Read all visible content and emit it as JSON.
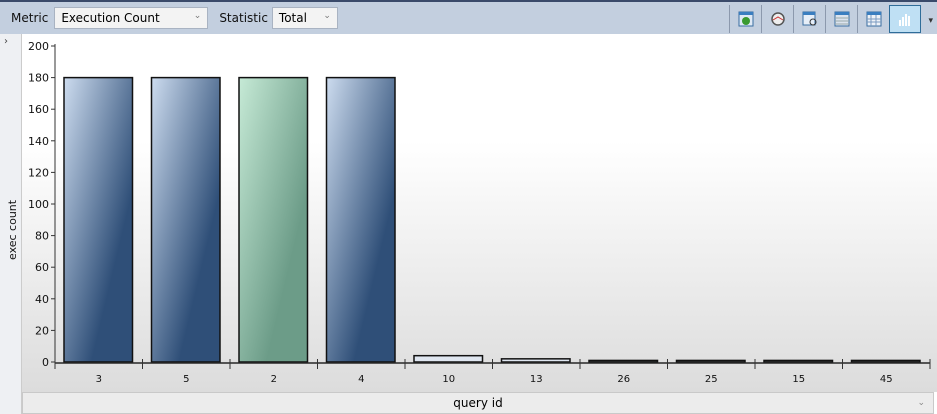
{
  "toolbar": {
    "metric_label": "Metric",
    "metric_value": "Execution Count",
    "statistic_label": "Statistic",
    "statistic_value": "Total",
    "icons": [
      "refresh-icon",
      "gauge-icon",
      "view-details-icon",
      "grid-view-icon",
      "table-view-icon",
      "chart-view-icon"
    ],
    "active_icon": "chart-view-icon"
  },
  "chart_data": {
    "type": "bar",
    "xlabel": "query id",
    "ylabel": "exec count",
    "categories": [
      "3",
      "5",
      "2",
      "4",
      "10",
      "13",
      "26",
      "25",
      "15",
      "45"
    ],
    "values": [
      180,
      180,
      180,
      180,
      4,
      2,
      1,
      1,
      1,
      1
    ],
    "highlighted": "2",
    "ylim": [
      0,
      200
    ],
    "yticks": [
      0,
      20,
      40,
      60,
      80,
      100,
      120,
      140,
      160,
      180,
      200
    ],
    "colors": {
      "bar": "#2f4f78",
      "bar_light": "#c9d9ee",
      "highlight": "#6c9c88",
      "highlight_light": "#c2e6d2"
    }
  }
}
